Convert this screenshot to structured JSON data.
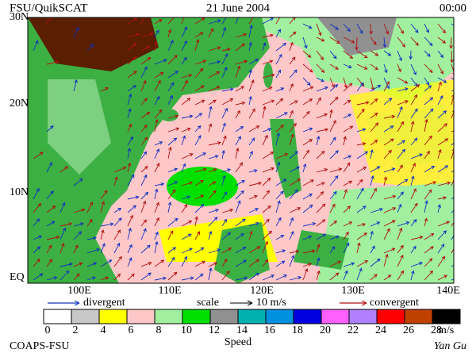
{
  "header": {
    "left": "FSU/QuikSCAT",
    "date": "21 June 2004",
    "time": "00:00"
  },
  "map": {
    "lat_labels": [
      "30N",
      "20N",
      "10N",
      "EQ"
    ],
    "lon_labels": [
      "100E",
      "110E",
      "120E",
      "130E",
      "140E"
    ]
  },
  "legend": {
    "divergent": "divergent",
    "divergent_color": "#1030c0",
    "scale": "scale",
    "scale_value": "10 m/s",
    "convergent": "convergent",
    "convergent_color": "#b01010"
  },
  "colorbar": {
    "ticks": [
      0,
      2,
      4,
      6,
      8,
      10,
      12,
      14,
      16,
      18,
      20,
      22,
      24,
      26,
      28
    ],
    "unit": "m/s",
    "title": "Speed",
    "colors": [
      "#ffffff",
      "#c8c8c8",
      "#ffff00",
      "#ffc8c8",
      "#a0f0a0",
      "#00e000",
      "#909090",
      "#00b0b0",
      "#0090e0",
      "#0000e0",
      "#ff60ff",
      "#b080ff",
      "#ff0000",
      "#c04000",
      "#000000"
    ]
  },
  "footer": {
    "left": "COAPS-FSU",
    "right": "Yan Gu"
  }
}
